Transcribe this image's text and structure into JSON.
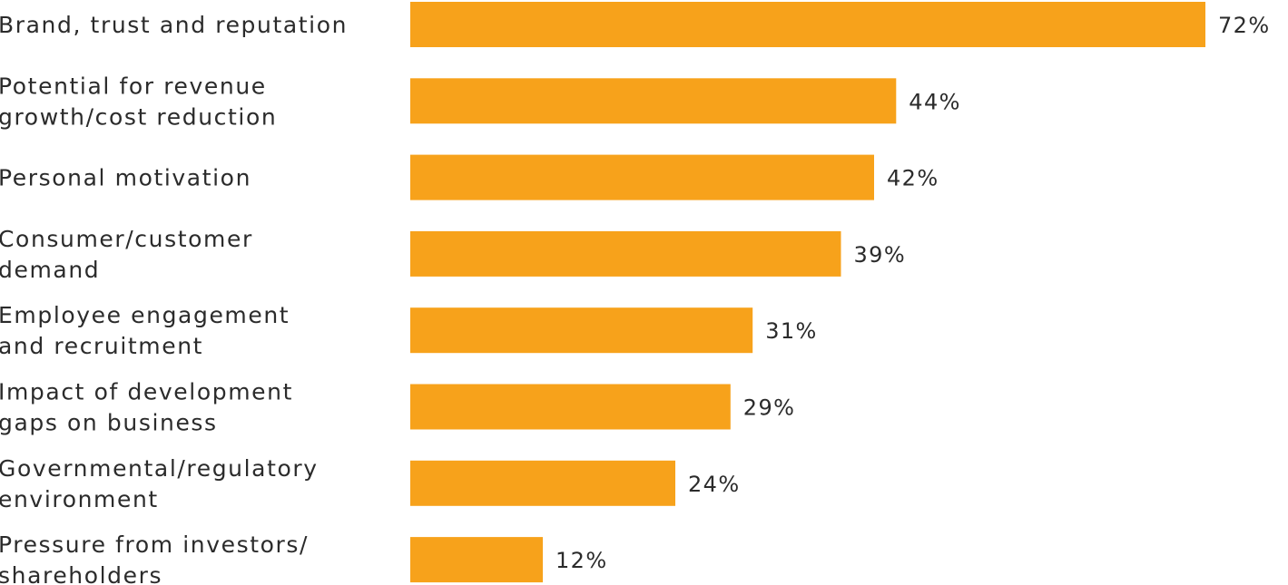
{
  "chart_data": {
    "type": "bar",
    "orientation": "horizontal",
    "categories": [
      [
        "Brand, trust and reputation"
      ],
      [
        "Potential for revenue",
        "growth/cost reduction"
      ],
      [
        "Personal motivation"
      ],
      [
        "Consumer/customer",
        "demand"
      ],
      [
        "Employee engagement",
        "and recruitment"
      ],
      [
        "Impact of development",
        "gaps on business"
      ],
      [
        "Governmental/regulatory",
        "environment"
      ],
      [
        "Pressure from investors/",
        "shareholders"
      ]
    ],
    "values": [
      72,
      44,
      42,
      39,
      31,
      29,
      24,
      12
    ],
    "value_labels": [
      "72%",
      "44%",
      "42%",
      "39%",
      "31%",
      "29%",
      "24%",
      "12%"
    ],
    "bar_color": "#F7A21B",
    "title": "",
    "xlabel": "",
    "ylabel": "",
    "xlim": [
      0,
      72
    ],
    "grid": false,
    "legend": "none"
  }
}
